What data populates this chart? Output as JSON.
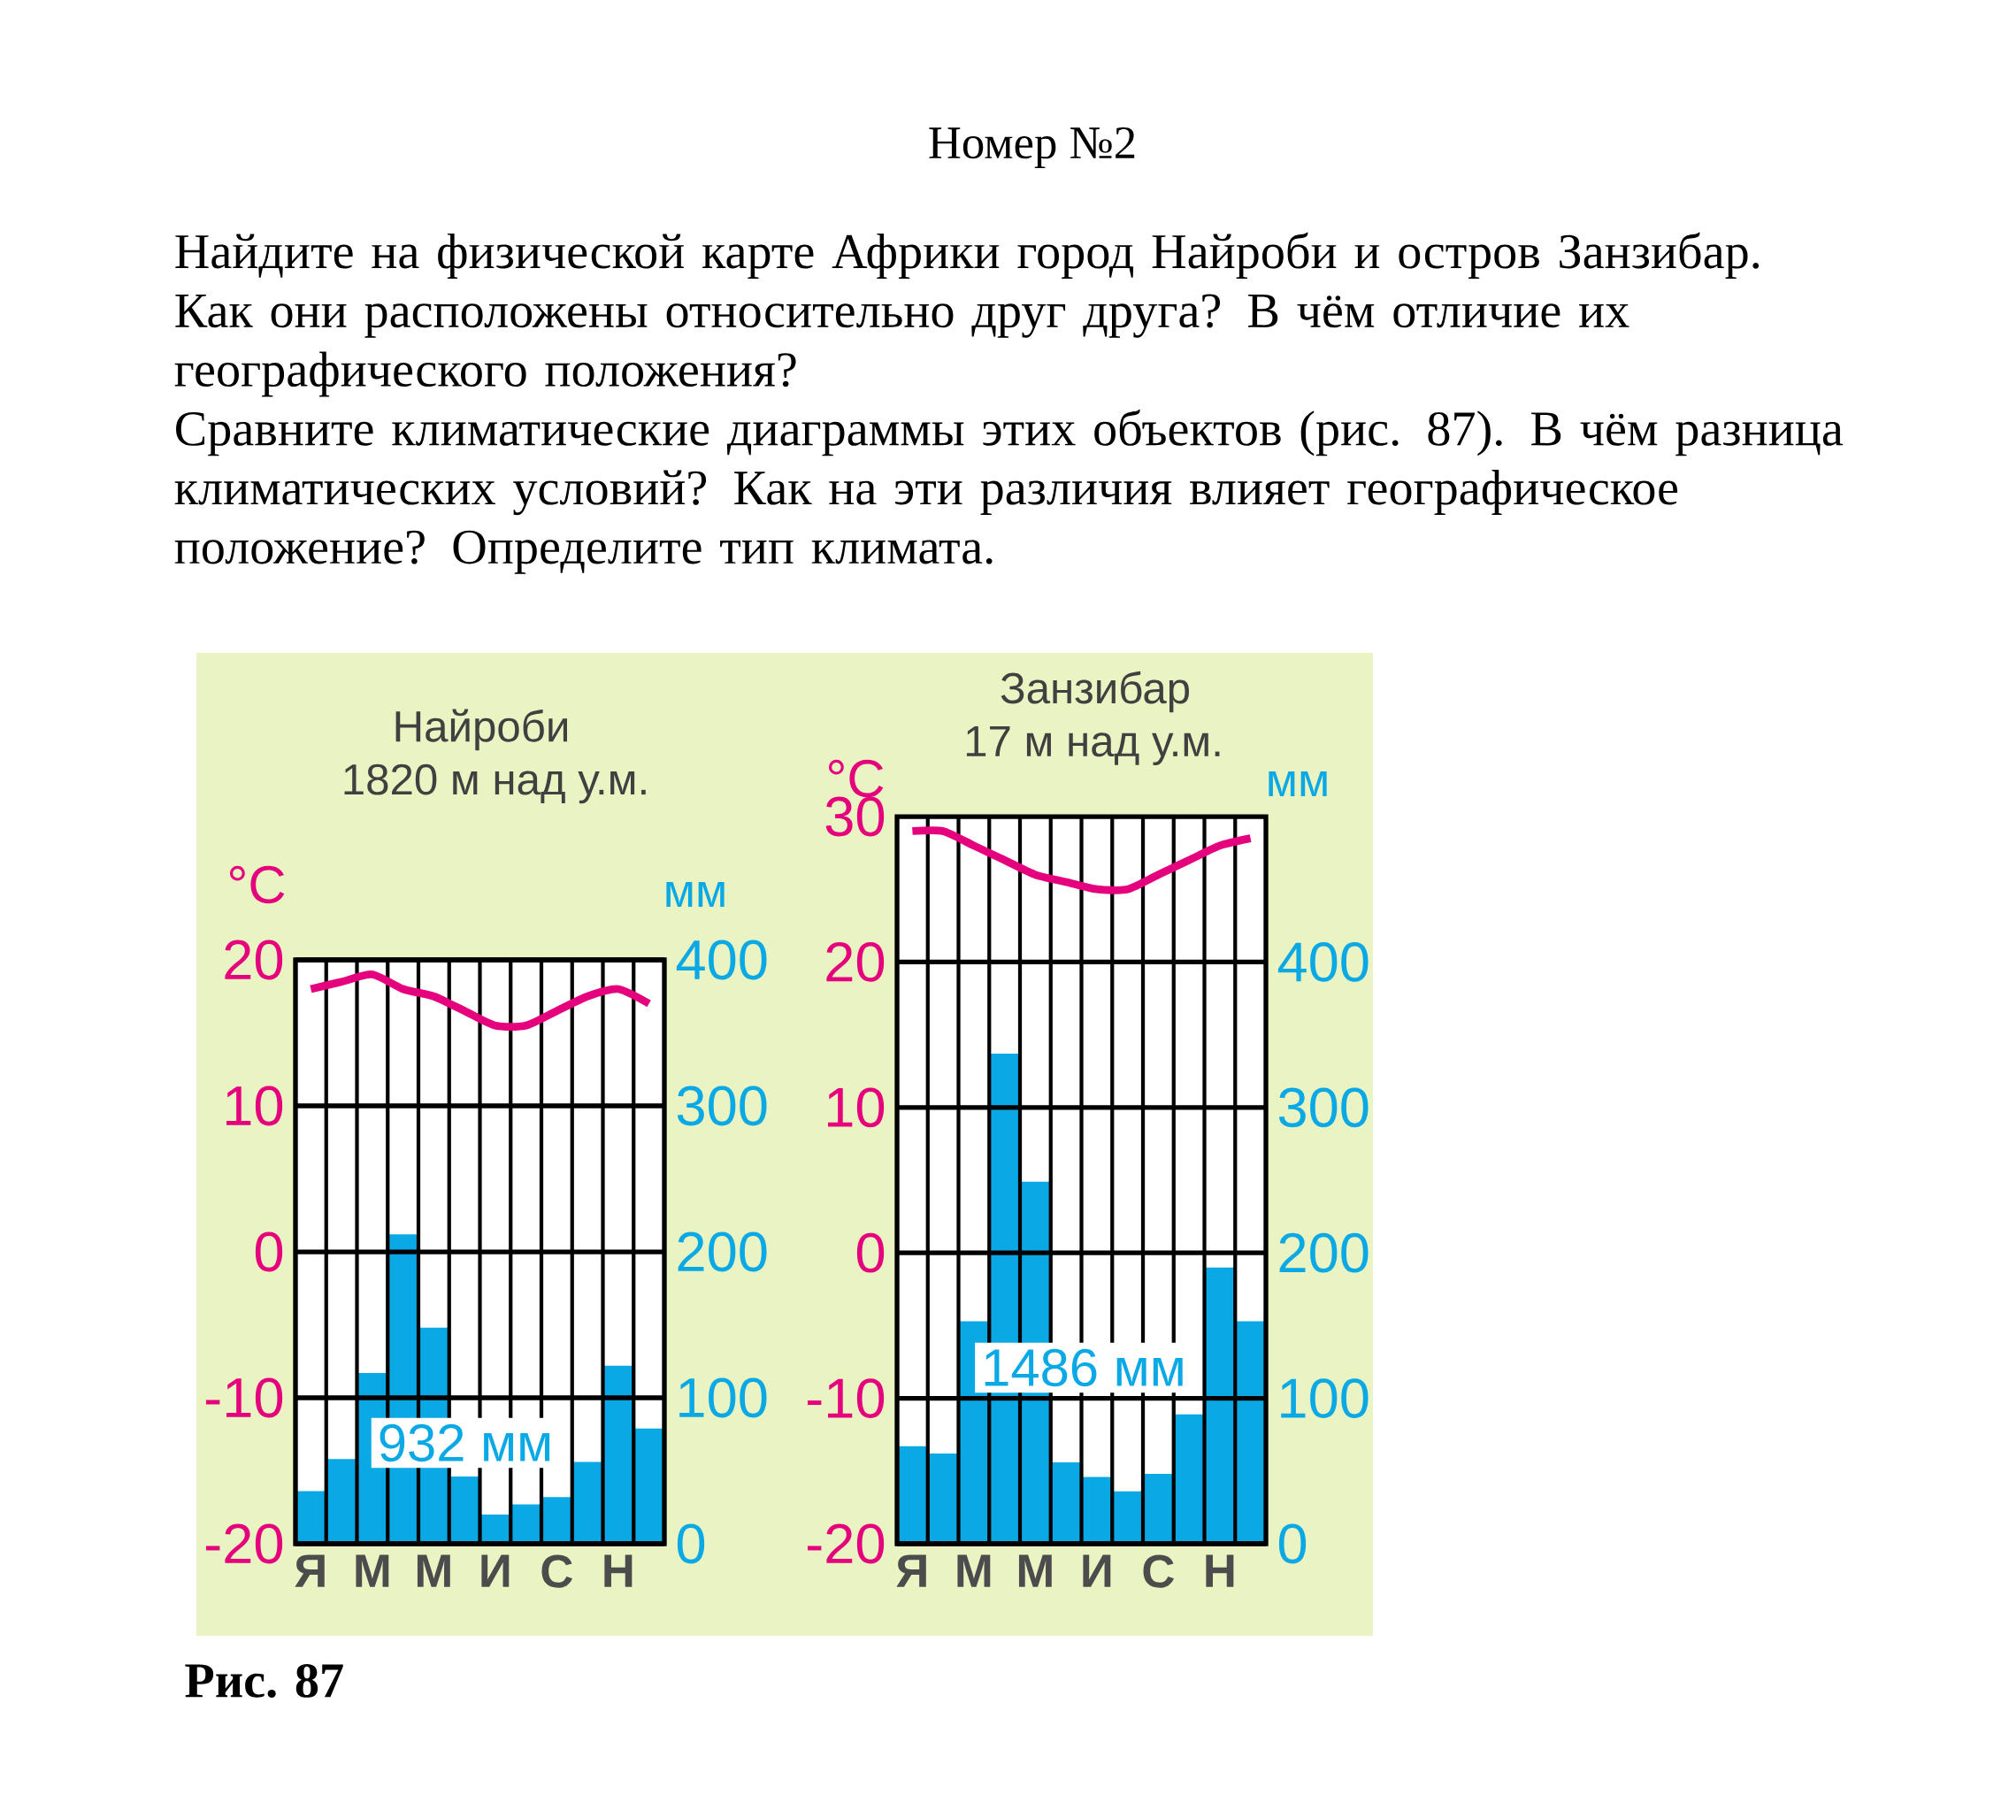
{
  "chart_data": [
    {
      "type": "bar",
      "title": "Найроби",
      "subtitle": "1820 м над у.м.",
      "ylabel": "°C",
      "y2label": "мм",
      "annotations": [
        "Номер №2",
        "Найдите на физической карте Африки город Найроби и остров Занзибар. Как они расположены относительно друг друга? В чём отличие их географического положения?",
        "Сравните климатические диаграммы этих объектов (рис. 87). В чём разница климатических условий? Как на эти различия влияет географическое положение? Определите тип климата.",
        "932 мм",
        "Рис. 87"
      ],
      "categories": [
        "Я",
        null,
        "М",
        null,
        "М",
        null,
        "И",
        null,
        "С",
        null,
        "Н",
        null
      ],
      "series": [
        {
          "axis": "y2",
          "color": "#0aa9e6",
          "values": [
            36,
            58,
            117,
            212,
            148,
            46,
            20,
            27,
            32,
            56,
            122,
            79
          ]
        },
        {
          "type": "line",
          "axis": "y",
          "color": "#e5007d",
          "values": [
            18,
            18.5,
            19,
            18,
            17.5,
            16.5,
            15.5,
            15.5,
            16.5,
            17.5,
            18,
            17
          ]
        }
      ],
      "ylim": [
        -20,
        20
      ],
      "yticks": [
        -20,
        -10,
        0,
        10,
        20
      ],
      "y2lim": [
        0,
        400
      ],
      "y2ticks": [
        0,
        100,
        200,
        300,
        400
      ],
      "grid": true,
      "marker": "none"
    },
    {
      "type": "bar",
      "title": "Занзибар",
      "subtitle": "17 м над у.м.",
      "ylabel": "°C",
      "y2label": "мм",
      "annotations": [
        "1486 мм"
      ],
      "categories": [
        "Я",
        null,
        "М",
        null,
        "М",
        null,
        "И",
        null,
        "С",
        null,
        "Н",
        null
      ],
      "series": [
        {
          "axis": "y2",
          "color": "#0aa9e6",
          "values": [
            67,
            62,
            153,
            337,
            249,
            56,
            46,
            36,
            48,
            89,
            190,
            153
          ]
        },
        {
          "type": "line",
          "axis": "y",
          "color": "#e5007d",
          "values": [
            29,
            29,
            28,
            27,
            26,
            25.5,
            25,
            25,
            26,
            27,
            28,
            28.5
          ]
        }
      ],
      "ylim": [
        -20,
        30
      ],
      "yticks": [
        -20,
        -10,
        0,
        10,
        20,
        30
      ],
      "y2lim": [
        0,
        500
      ],
      "y2ticks": [
        0,
        100,
        200,
        300,
        400
      ],
      "grid": true,
      "marker": "none"
    }
  ]
}
